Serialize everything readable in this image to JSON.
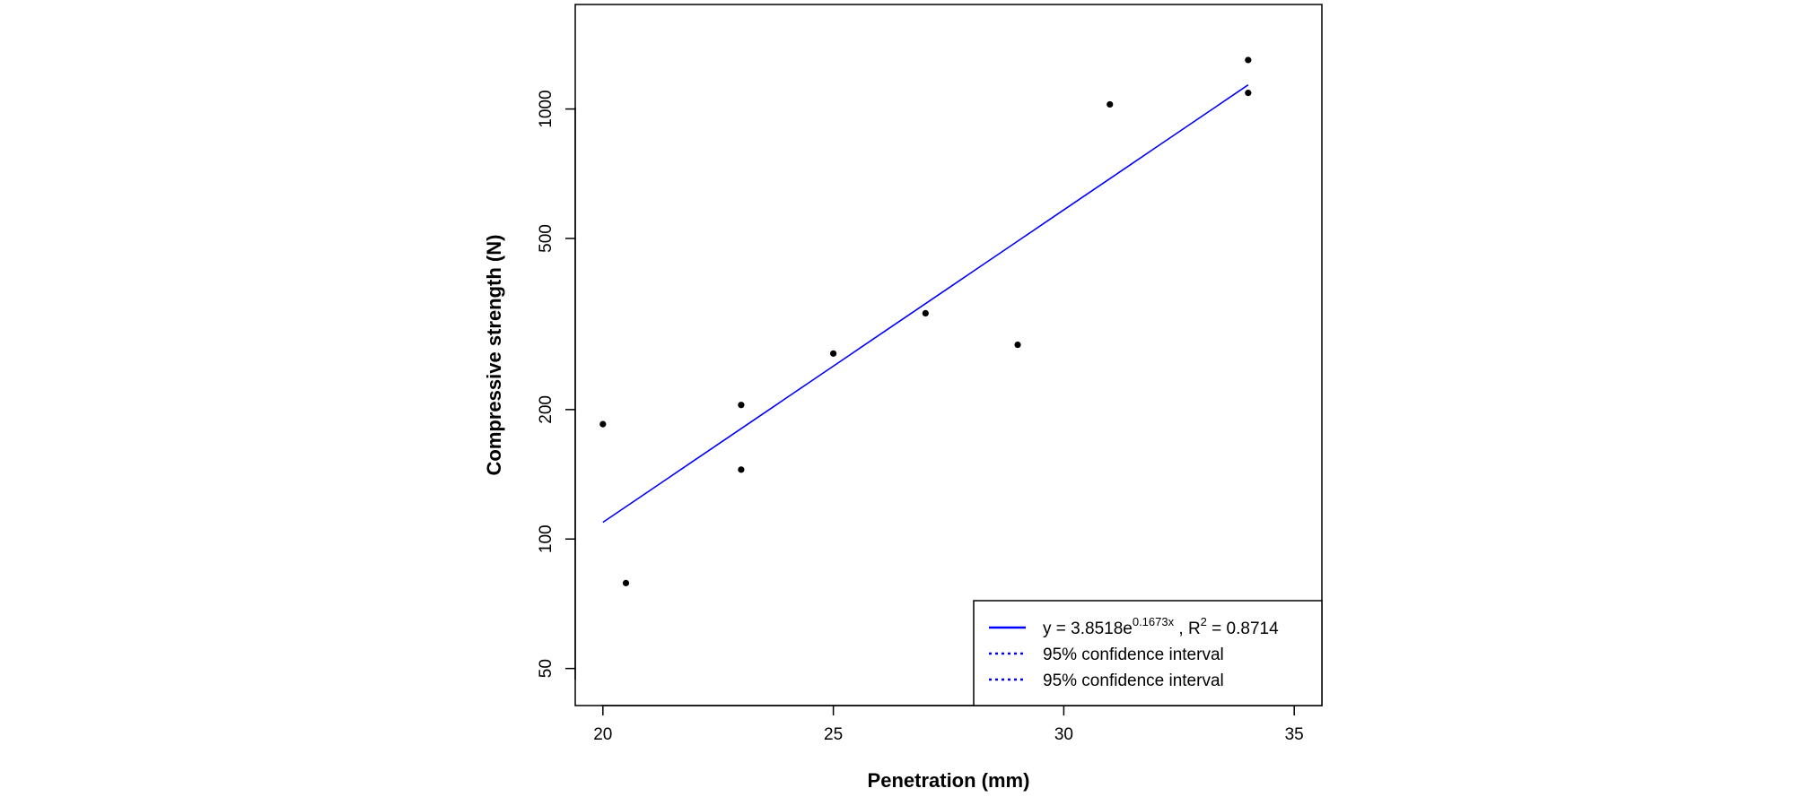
{
  "chart_data": {
    "type": "scatter",
    "xlabel": "Penetration (mm)",
    "ylabel": "Compressive strength (N)",
    "y_scale": "log",
    "xlim": [
      19.4,
      35.6
    ],
    "ylim": [
      41,
      1750
    ],
    "x_ticks": [
      20,
      25,
      30,
      35
    ],
    "y_ticks": [
      50,
      100,
      200,
      500,
      1000
    ],
    "grid": false,
    "legend_position": "bottom-right",
    "points": [
      {
        "x": 20,
        "y": 185
      },
      {
        "x": 20.5,
        "y": 79
      },
      {
        "x": 23,
        "y": 205
      },
      {
        "x": 23,
        "y": 145
      },
      {
        "x": 25,
        "y": 270
      },
      {
        "x": 27,
        "y": 335
      },
      {
        "x": 29,
        "y": 283
      },
      {
        "x": 31,
        "y": 1025
      },
      {
        "x": 34,
        "y": 1300
      },
      {
        "x": 34,
        "y": 1090
      }
    ],
    "fit": {
      "type": "exponential",
      "a": 3.8518,
      "b": 0.1673,
      "x_range": [
        20,
        34
      ],
      "color": "#0000ff"
    },
    "legend": [
      {
        "style": "solid",
        "color": "#0000ff",
        "label_prefix": "y = 3.8518e",
        "label_exp": "0.1673x",
        "label_mid": " , R",
        "label_sup": "2",
        "label_suffix": " = 0.8714"
      },
      {
        "style": "dotted",
        "color": "#0000ff",
        "label": "95% confidence interval"
      },
      {
        "style": "dotted",
        "color": "#0000ff",
        "label": "95% confidence interval"
      }
    ],
    "point_color": "#000000"
  }
}
